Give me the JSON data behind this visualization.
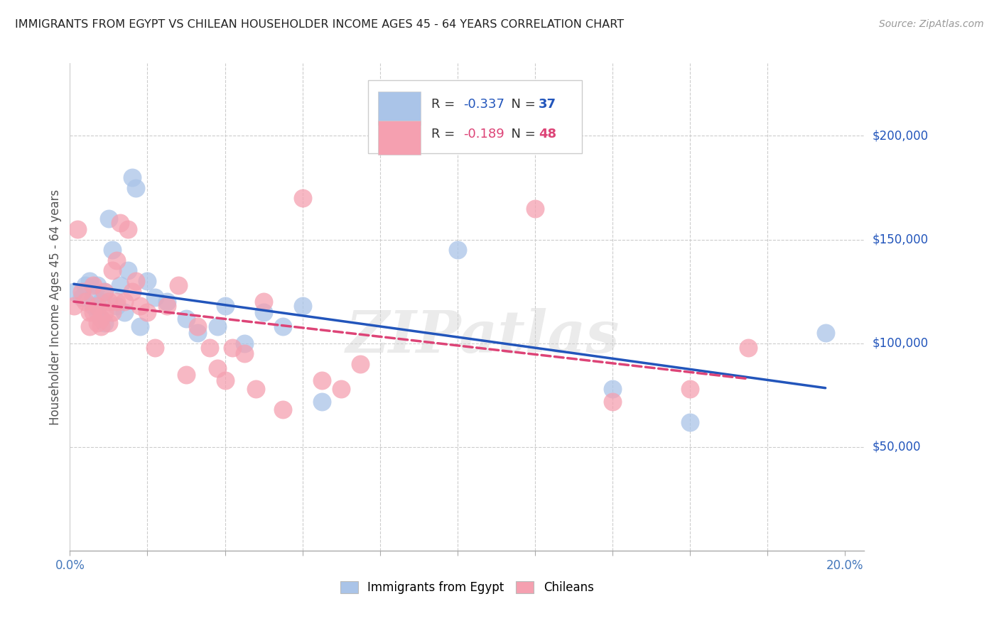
{
  "title": "IMMIGRANTS FROM EGYPT VS CHILEAN HOUSEHOLDER INCOME AGES 45 - 64 YEARS CORRELATION CHART",
  "source": "Source: ZipAtlas.com",
  "ylabel": "Householder Income Ages 45 - 64 years",
  "xlim": [
    0.0,
    0.205
  ],
  "ylim": [
    0,
    235000
  ],
  "ytick_labels_right": [
    "$50,000",
    "$100,000",
    "$150,000",
    "$200,000"
  ],
  "ytick_values_right": [
    50000,
    100000,
    150000,
    200000
  ],
  "grid_color": "#cccccc",
  "background_color": "#ffffff",
  "egypt_color": "#aac4e8",
  "egypt_line_color": "#2255bb",
  "chile_color": "#f5a0b0",
  "chile_line_color": "#dd4477",
  "egypt_R": "-0.337",
  "egypt_N": "37",
  "chile_R": "-0.189",
  "chile_N": "48",
  "watermark": "ZIPatlas",
  "legend_labels": [
    "Immigrants from Egypt",
    "Chileans"
  ],
  "egypt_x": [
    0.001,
    0.003,
    0.004,
    0.005,
    0.006,
    0.006,
    0.007,
    0.007,
    0.008,
    0.008,
    0.009,
    0.009,
    0.01,
    0.011,
    0.012,
    0.013,
    0.014,
    0.015,
    0.016,
    0.017,
    0.018,
    0.02,
    0.022,
    0.025,
    0.03,
    0.033,
    0.038,
    0.04,
    0.045,
    0.05,
    0.055,
    0.06,
    0.065,
    0.1,
    0.14,
    0.16,
    0.195
  ],
  "egypt_y": [
    125000,
    122000,
    128000,
    130000,
    118000,
    122000,
    128000,
    115000,
    120000,
    112000,
    125000,
    110000,
    160000,
    145000,
    118000,
    128000,
    115000,
    135000,
    180000,
    175000,
    108000,
    130000,
    122000,
    120000,
    112000,
    105000,
    108000,
    118000,
    100000,
    115000,
    108000,
    118000,
    72000,
    145000,
    78000,
    62000,
    105000
  ],
  "chile_x": [
    0.001,
    0.002,
    0.003,
    0.004,
    0.005,
    0.005,
    0.006,
    0.006,
    0.007,
    0.007,
    0.008,
    0.008,
    0.009,
    0.009,
    0.01,
    0.01,
    0.011,
    0.011,
    0.012,
    0.012,
    0.013,
    0.014,
    0.015,
    0.016,
    0.017,
    0.018,
    0.02,
    0.022,
    0.025,
    0.028,
    0.03,
    0.033,
    0.036,
    0.038,
    0.04,
    0.042,
    0.045,
    0.048,
    0.05,
    0.055,
    0.06,
    0.065,
    0.07,
    0.075,
    0.12,
    0.14,
    0.16,
    0.175
  ],
  "chile_y": [
    118000,
    155000,
    125000,
    120000,
    115000,
    108000,
    128000,
    115000,
    118000,
    110000,
    112000,
    108000,
    125000,
    115000,
    120000,
    110000,
    135000,
    115000,
    140000,
    120000,
    158000,
    120000,
    155000,
    125000,
    130000,
    118000,
    115000,
    98000,
    118000,
    128000,
    85000,
    108000,
    98000,
    88000,
    82000,
    98000,
    95000,
    78000,
    120000,
    68000,
    170000,
    82000,
    78000,
    90000,
    165000,
    72000,
    78000,
    98000
  ]
}
